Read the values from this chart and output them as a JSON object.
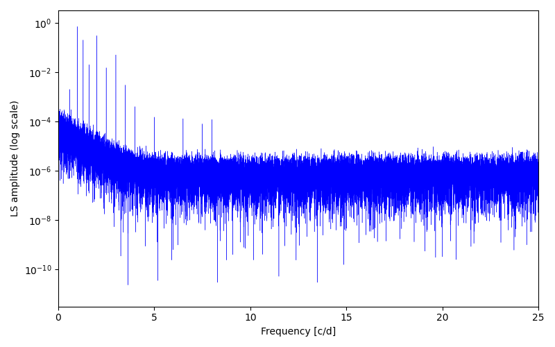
{
  "xlabel": "Frequency [c/d]",
  "ylabel": "LS amplitude (log scale)",
  "xlim": [
    0,
    25
  ],
  "ylim_log": [
    -11.5,
    0.5
  ],
  "line_color": "#0000ff",
  "background_color": "#ffffff",
  "figsize": [
    8.0,
    5.0
  ],
  "dpi": 100,
  "seed": 42,
  "n_points": 20000,
  "freq_max": 25.0
}
